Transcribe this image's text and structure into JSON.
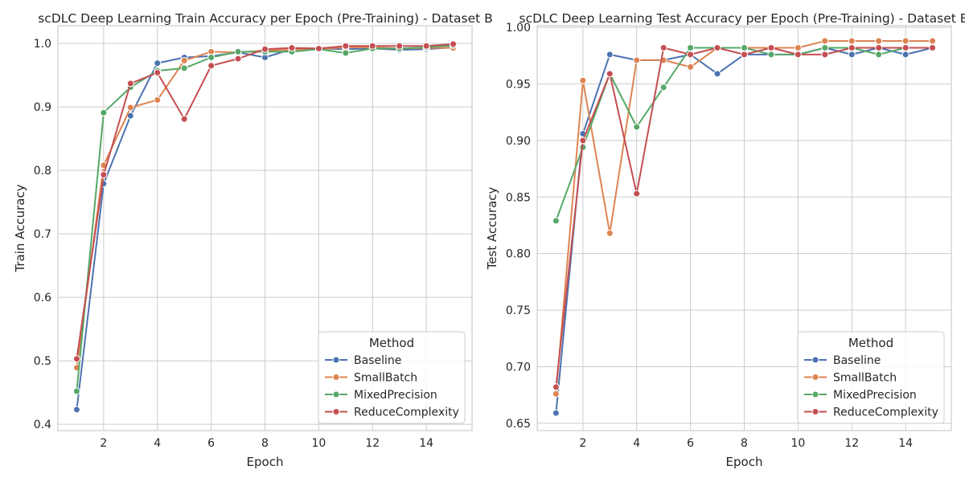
{
  "chart_data": [
    {
      "type": "line",
      "title": "scDLC Deep Learning Train Accuracy per Epoch (Pre-Training) - Dataset B",
      "xlabel": "Epoch",
      "ylabel": "Train Accuracy",
      "xlim": [
        0.3,
        15.7
      ],
      "ylim": [
        0.39,
        1.028
      ],
      "xticks": [
        2,
        4,
        6,
        8,
        10,
        12,
        14
      ],
      "yticks": [
        0.4,
        0.5,
        0.6,
        0.7,
        0.8,
        0.9,
        1.0
      ],
      "ytick_labels": [
        "0.4",
        "0.5",
        "0.6",
        "0.7",
        "0.8",
        "0.9",
        "1.0"
      ],
      "grid": true,
      "legend": {
        "title": "Method",
        "placement": "lower right"
      },
      "x": [
        1,
        2,
        3,
        4,
        5,
        6,
        7,
        8,
        9,
        10,
        11,
        12,
        13,
        14,
        15
      ],
      "series": [
        {
          "name": "Baseline",
          "color": "#4c72b0",
          "values": [
            0.423,
            0.779,
            0.886,
            0.969,
            0.978,
            0.98,
            0.986,
            0.978,
            0.991,
            0.992,
            0.991,
            0.992,
            0.99,
            0.991,
            0.994
          ]
        },
        {
          "name": "SmallBatch",
          "color": "#dd8452",
          "values": [
            0.489,
            0.808,
            0.899,
            0.911,
            0.973,
            0.987,
            0.986,
            0.989,
            0.99,
            0.991,
            0.994,
            0.994,
            0.992,
            0.993,
            0.993
          ]
        },
        {
          "name": "MixedPrecision",
          "color": "#55a868",
          "values": [
            0.452,
            0.891,
            0.931,
            0.957,
            0.961,
            0.978,
            0.987,
            0.987,
            0.987,
            0.991,
            0.985,
            0.992,
            0.992,
            0.994,
            0.997
          ]
        },
        {
          "name": "ReduceComplexity",
          "color": "#c44e52",
          "values": [
            0.503,
            0.793,
            0.937,
            0.954,
            0.881,
            0.965,
            0.976,
            0.991,
            0.993,
            0.992,
            0.996,
            0.996,
            0.996,
            0.996,
            0.999
          ]
        }
      ]
    },
    {
      "type": "line",
      "title": "scDLC Deep Learning Test Accuracy per Epoch (Pre-Training) - Dataset B",
      "xlabel": "Epoch",
      "ylabel": "Test Accuracy",
      "xlim": [
        0.3,
        15.7
      ],
      "ylim": [
        0.6435,
        1.0015
      ],
      "xticks": [
        2,
        4,
        6,
        8,
        10,
        12,
        14
      ],
      "yticks": [
        0.65,
        0.7,
        0.75,
        0.8,
        0.85,
        0.9,
        0.95,
        1.0
      ],
      "ytick_labels": [
        "0.65",
        "0.70",
        "0.75",
        "0.80",
        "0.85",
        "0.90",
        "0.95",
        "1.00"
      ],
      "grid": true,
      "legend": {
        "title": "Method",
        "placement": "lower right"
      },
      "x": [
        1,
        2,
        3,
        4,
        5,
        6,
        7,
        8,
        9,
        10,
        11,
        12,
        13,
        14,
        15
      ],
      "series": [
        {
          "name": "Baseline",
          "color": "#4c72b0",
          "values": [
            0.659,
            0.906,
            0.976,
            0.971,
            0.971,
            0.976,
            0.959,
            0.976,
            0.976,
            0.976,
            0.982,
            0.976,
            0.982,
            0.976,
            0.982
          ]
        },
        {
          "name": "SmallBatch",
          "color": "#dd8452",
          "values": [
            0.676,
            0.953,
            0.818,
            0.971,
            0.971,
            0.965,
            0.982,
            0.982,
            0.982,
            0.982,
            0.988,
            0.988,
            0.988,
            0.988,
            0.988
          ]
        },
        {
          "name": "MixedPrecision",
          "color": "#55a868",
          "values": [
            0.829,
            0.894,
            0.959,
            0.912,
            0.947,
            0.982,
            0.982,
            0.982,
            0.976,
            0.976,
            0.982,
            0.982,
            0.976,
            0.982,
            0.982
          ]
        },
        {
          "name": "ReduceComplexity",
          "color": "#c44e52",
          "values": [
            0.682,
            0.9,
            0.959,
            0.853,
            0.982,
            0.976,
            0.982,
            0.976,
            0.982,
            0.976,
            0.976,
            0.982,
            0.982,
            0.982,
            0.982
          ]
        }
      ]
    }
  ]
}
